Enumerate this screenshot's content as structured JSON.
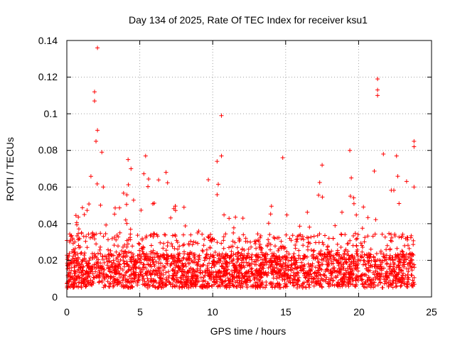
{
  "chart_data": {
    "type": "scatter",
    "title": "Day 134 of 2025, Rate Of TEC Index for receiver ksu1",
    "xlabel": "GPS time / hours",
    "ylabel": "ROTI / TECUs",
    "xlim": [
      0,
      25
    ],
    "ylim": [
      0,
      0.14
    ],
    "x_ticks": [
      "0",
      "5",
      "10",
      "15",
      "20",
      "25"
    ],
    "y_ticks": [
      "0",
      "0.02",
      "0.04",
      "0.06",
      "0.08",
      "0.1",
      "0.12",
      "0.14"
    ],
    "grid": true,
    "marker": "+",
    "series_color": "#ff0000",
    "sample_points": [
      {
        "x": 0.1,
        "y": 0.012
      },
      {
        "x": 0.2,
        "y": 0.03
      },
      {
        "x": 0.5,
        "y": 0.02
      },
      {
        "x": 1.0,
        "y": 0.035
      },
      {
        "x": 1.2,
        "y": 0.045
      },
      {
        "x": 1.9,
        "y": 0.112
      },
      {
        "x": 1.9,
        "y": 0.107
      },
      {
        "x": 2.1,
        "y": 0.136
      },
      {
        "x": 2.1,
        "y": 0.091
      },
      {
        "x": 2.0,
        "y": 0.085
      },
      {
        "x": 2.4,
        "y": 0.079
      },
      {
        "x": 2.5,
        "y": 0.06
      },
      {
        "x": 4.2,
        "y": 0.075
      },
      {
        "x": 4.4,
        "y": 0.07
      },
      {
        "x": 5.4,
        "y": 0.077
      },
      {
        "x": 6.8,
        "y": 0.068
      },
      {
        "x": 9.7,
        "y": 0.064
      },
      {
        "x": 10.3,
        "y": 0.074
      },
      {
        "x": 10.6,
        "y": 0.099
      },
      {
        "x": 10.6,
        "y": 0.077
      },
      {
        "x": 14.8,
        "y": 0.076
      },
      {
        "x": 17.5,
        "y": 0.072
      },
      {
        "x": 19.4,
        "y": 0.08
      },
      {
        "x": 19.5,
        "y": 0.065
      },
      {
        "x": 21.3,
        "y": 0.119
      },
      {
        "x": 21.3,
        "y": 0.113
      },
      {
        "x": 21.3,
        "y": 0.11
      },
      {
        "x": 21.7,
        "y": 0.078
      },
      {
        "x": 22.6,
        "y": 0.077
      },
      {
        "x": 23.8,
        "y": 0.085
      },
      {
        "x": 23.8,
        "y": 0.082
      },
      {
        "x": 23.8,
        "y": 0.06
      }
    ],
    "background_band": {
      "y_min": 0.005,
      "y_max": 0.03,
      "typical": 0.012
    },
    "peak_regions_hours": [
      [
        1.5,
        2.7
      ],
      [
        3.8,
        4.6
      ],
      [
        5.2,
        7.0
      ],
      [
        9.5,
        10.8
      ],
      [
        17.0,
        17.8
      ],
      [
        19.2,
        19.8
      ],
      [
        21.0,
        23.9
      ]
    ]
  }
}
